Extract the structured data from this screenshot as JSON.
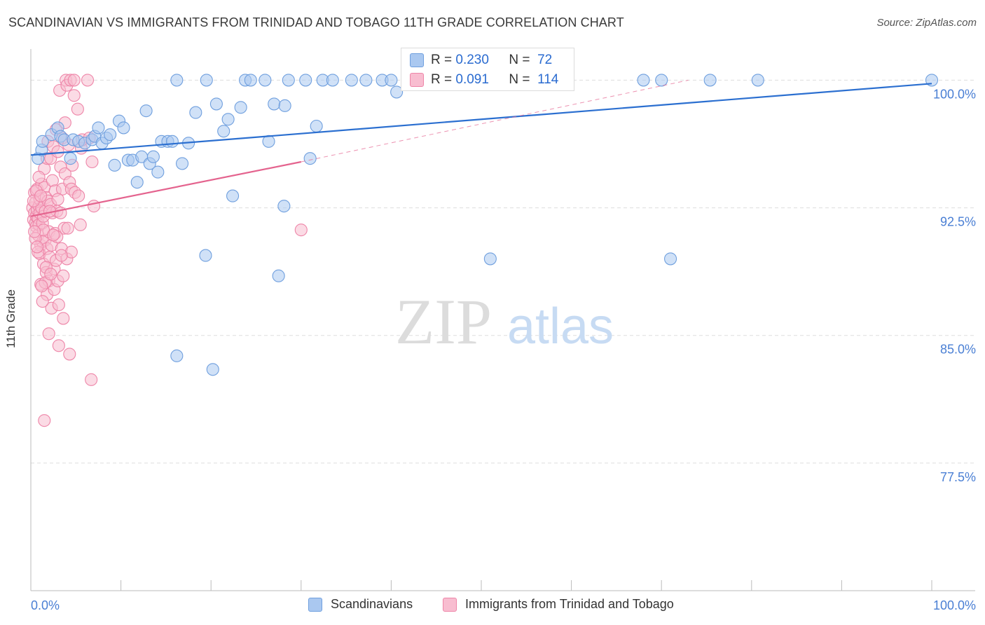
{
  "title": "SCANDINAVIAN VS IMMIGRANTS FROM TRINIDAD AND TOBAGO 11TH GRADE CORRELATION CHART",
  "source": "Source: ZipAtlas.com",
  "watermark": {
    "zip": "ZIP",
    "atlas": "atlas"
  },
  "colors": {
    "blue_fill": "#aac8f0",
    "blue_stroke": "#6f9fde",
    "blue_line": "#2b6fd0",
    "pink_fill": "#f8bdd0",
    "pink_stroke": "#ee85a8",
    "pink_line": "#e4638e",
    "tick_label": "#4a7fd4",
    "grid": "#dddddd"
  },
  "legend": {
    "scandinavians": "Scandinavians",
    "trinidad": "Immigrants from Trinidad and Tobago"
  },
  "stats": {
    "blue": {
      "r_label": "R =",
      "r_value": "0.230",
      "n_label": "N =",
      "n_value": "72"
    },
    "pink": {
      "r_label": "R =",
      "r_value": "0.091",
      "n_label": "N =",
      "n_value": "114"
    }
  },
  "chart_data": {
    "type": "scatter",
    "title": "SCANDINAVIAN VS IMMIGRANTS FROM TRINIDAD AND TOBAGO 11TH GRADE CORRELATION CHART",
    "xlabel": "",
    "ylabel": "11th Grade",
    "xlim": [
      0,
      100
    ],
    "ylim": [
      70,
      101.5
    ],
    "x_tick_labels": [
      "0.0%",
      "100.0%"
    ],
    "y_ticks": [
      {
        "value": 100,
        "label": "100.0%"
      },
      {
        "value": 92.5,
        "label": "92.5%"
      },
      {
        "value": 85,
        "label": "85.0%"
      },
      {
        "value": 77.5,
        "label": "77.5%"
      }
    ],
    "series": [
      {
        "name": "Scandinavians",
        "color": "#aac8f0",
        "r": 0.23,
        "n": 72,
        "trend": {
          "x": [
            0,
            100
          ],
          "y": [
            95.6,
            99.8
          ]
        },
        "points": [
          [
            0.8,
            95.4
          ],
          [
            1.2,
            95.9
          ],
          [
            2.3,
            96.8
          ],
          [
            3.0,
            97.2
          ],
          [
            3.3,
            96.7
          ],
          [
            3.7,
            96.5
          ],
          [
            4.4,
            95.4
          ],
          [
            4.7,
            96.5
          ],
          [
            5.3,
            96.4
          ],
          [
            6.0,
            96.3
          ],
          [
            6.8,
            96.5
          ],
          [
            7.1,
            96.7
          ],
          [
            7.5,
            97.2
          ],
          [
            7.9,
            96.3
          ],
          [
            8.4,
            96.6
          ],
          [
            8.8,
            96.8
          ],
          [
            9.3,
            95.0
          ],
          [
            9.8,
            97.6
          ],
          [
            10.3,
            97.2
          ],
          [
            10.8,
            95.3
          ],
          [
            11.3,
            95.3
          ],
          [
            11.8,
            94.0
          ],
          [
            12.3,
            95.5
          ],
          [
            12.8,
            98.2
          ],
          [
            13.2,
            95.1
          ],
          [
            13.6,
            95.5
          ],
          [
            14.1,
            94.6
          ],
          [
            14.5,
            96.4
          ],
          [
            15.2,
            96.4
          ],
          [
            15.7,
            96.4
          ],
          [
            16.2,
            100.0
          ],
          [
            16.8,
            95.1
          ],
          [
            17.5,
            96.3
          ],
          [
            18.3,
            98.1
          ],
          [
            19.5,
            100.0
          ],
          [
            20.6,
            98.6
          ],
          [
            21.4,
            97.0
          ],
          [
            21.9,
            97.7
          ],
          [
            22.4,
            93.2
          ],
          [
            23.3,
            98.4
          ],
          [
            23.8,
            100.0
          ],
          [
            24.4,
            100.0
          ],
          [
            26.0,
            100.0
          ],
          [
            26.4,
            96.4
          ],
          [
            27.0,
            98.6
          ],
          [
            28.2,
            98.5
          ],
          [
            28.6,
            100.0
          ],
          [
            30.5,
            100.0
          ],
          [
            31.0,
            95.4
          ],
          [
            31.7,
            97.3
          ],
          [
            32.4,
            100.0
          ],
          [
            33.5,
            100.0
          ],
          [
            35.6,
            100.0
          ],
          [
            37.2,
            100.0
          ],
          [
            39.0,
            100.0
          ],
          [
            40.0,
            100.0
          ],
          [
            40.6,
            99.3
          ],
          [
            42.5,
            100.0
          ],
          [
            45.0,
            100.0
          ],
          [
            68.0,
            100.0
          ],
          [
            70.0,
            100.0
          ],
          [
            75.4,
            100.0
          ],
          [
            80.7,
            100.0
          ],
          [
            100.0,
            100.0
          ],
          [
            28.1,
            92.6
          ],
          [
            19.4,
            89.7
          ],
          [
            27.5,
            88.5
          ],
          [
            51.0,
            89.5
          ],
          [
            71.0,
            89.5
          ],
          [
            16.2,
            83.8
          ],
          [
            20.2,
            83.0
          ],
          [
            1.3,
            96.4
          ]
        ]
      },
      {
        "name": "Immigrants from Trinidad and Tobago",
        "color": "#f8bdd0",
        "r": 0.091,
        "n": 114,
        "trend": {
          "x": [
            0,
            30
          ],
          "y": [
            92.0,
            95.2
          ]
        },
        "trend_dashed": {
          "x": [
            30,
            73
          ],
          "y": [
            95.2,
            100.0
          ]
        },
        "points": [
          [
            0.2,
            92.5
          ],
          [
            0.3,
            91.8
          ],
          [
            0.4,
            92.2
          ],
          [
            0.4,
            93.4
          ],
          [
            0.5,
            91.6
          ],
          [
            0.5,
            92.8
          ],
          [
            0.6,
            92.0
          ],
          [
            0.6,
            91.4
          ],
          [
            0.7,
            93.6
          ],
          [
            0.7,
            92.4
          ],
          [
            0.8,
            91.9
          ],
          [
            0.8,
            90.9
          ],
          [
            0.9,
            92.6
          ],
          [
            0.9,
            91.5
          ],
          [
            1.0,
            93.0
          ],
          [
            1.0,
            92.2
          ],
          [
            1.0,
            89.8
          ],
          [
            1.1,
            90.3
          ],
          [
            1.1,
            88.0
          ],
          [
            1.2,
            93.9
          ],
          [
            1.2,
            92.5
          ],
          [
            1.3,
            91.6
          ],
          [
            1.3,
            90.5
          ],
          [
            1.4,
            92.0
          ],
          [
            1.4,
            89.2
          ],
          [
            1.5,
            94.8
          ],
          [
            1.5,
            93.7
          ],
          [
            1.6,
            92.3
          ],
          [
            1.6,
            90.6
          ],
          [
            1.7,
            93.1
          ],
          [
            1.7,
            88.7
          ],
          [
            1.8,
            95.4
          ],
          [
            1.8,
            90.1
          ],
          [
            1.8,
            87.4
          ],
          [
            1.9,
            96.4
          ],
          [
            1.9,
            92.9
          ],
          [
            2.0,
            91.1
          ],
          [
            2.0,
            88.2
          ],
          [
            2.0,
            85.1
          ],
          [
            2.1,
            89.6
          ],
          [
            2.2,
            95.4
          ],
          [
            2.2,
            92.7
          ],
          [
            2.3,
            90.3
          ],
          [
            2.3,
            86.6
          ],
          [
            2.4,
            94.1
          ],
          [
            2.4,
            92.2
          ],
          [
            2.5,
            96.1
          ],
          [
            2.6,
            88.9
          ],
          [
            2.6,
            87.7
          ],
          [
            2.7,
            93.5
          ],
          [
            2.7,
            91.0
          ],
          [
            2.8,
            97.1
          ],
          [
            2.8,
            89.4
          ],
          [
            2.9,
            92.3
          ],
          [
            3.0,
            95.8
          ],
          [
            3.0,
            88.2
          ],
          [
            3.1,
            86.8
          ],
          [
            3.1,
            84.4
          ],
          [
            3.2,
            99.4
          ],
          [
            3.3,
            94.9
          ],
          [
            3.3,
            92.2
          ],
          [
            3.4,
            90.1
          ],
          [
            3.5,
            96.6
          ],
          [
            3.5,
            93.6
          ],
          [
            3.6,
            88.5
          ],
          [
            3.6,
            86.0
          ],
          [
            3.7,
            91.3
          ],
          [
            3.8,
            97.5
          ],
          [
            3.8,
            94.5
          ],
          [
            3.9,
            100.0
          ],
          [
            4.0,
            99.7
          ],
          [
            4.0,
            89.5
          ],
          [
            4.1,
            91.3
          ],
          [
            4.2,
            96.2
          ],
          [
            4.3,
            94.0
          ],
          [
            4.3,
            83.9
          ],
          [
            4.4,
            100.0
          ],
          [
            4.5,
            93.6
          ],
          [
            4.5,
            89.9
          ],
          [
            4.6,
            95.0
          ],
          [
            4.8,
            100.0
          ],
          [
            4.8,
            99.1
          ],
          [
            4.9,
            93.4
          ],
          [
            5.2,
            98.3
          ],
          [
            5.3,
            93.2
          ],
          [
            5.5,
            91.5
          ],
          [
            5.6,
            96.0
          ],
          [
            5.7,
            96.5
          ],
          [
            6.3,
            100.0
          ],
          [
            6.5,
            96.6
          ],
          [
            6.8,
            95.2
          ],
          [
            7.0,
            92.6
          ],
          [
            6.7,
            82.4
          ],
          [
            1.5,
            80.0
          ],
          [
            1.3,
            87.0
          ],
          [
            30.0,
            91.2
          ],
          [
            0.6,
            93.5
          ],
          [
            0.5,
            90.7
          ],
          [
            0.3,
            92.9
          ],
          [
            0.9,
            94.3
          ],
          [
            1.1,
            93.2
          ],
          [
            1.4,
            91.2
          ],
          [
            2.1,
            92.3
          ],
          [
            2.9,
            90.8
          ],
          [
            3.4,
            89.7
          ],
          [
            1.6,
            88.1
          ],
          [
            2.5,
            90.9
          ],
          [
            0.8,
            89.9
          ],
          [
            1.2,
            87.9
          ],
          [
            1.7,
            89.0
          ],
          [
            2.2,
            88.6
          ],
          [
            0.4,
            91.1
          ],
          [
            0.7,
            90.2
          ],
          [
            3.0,
            93.0
          ]
        ]
      }
    ]
  }
}
